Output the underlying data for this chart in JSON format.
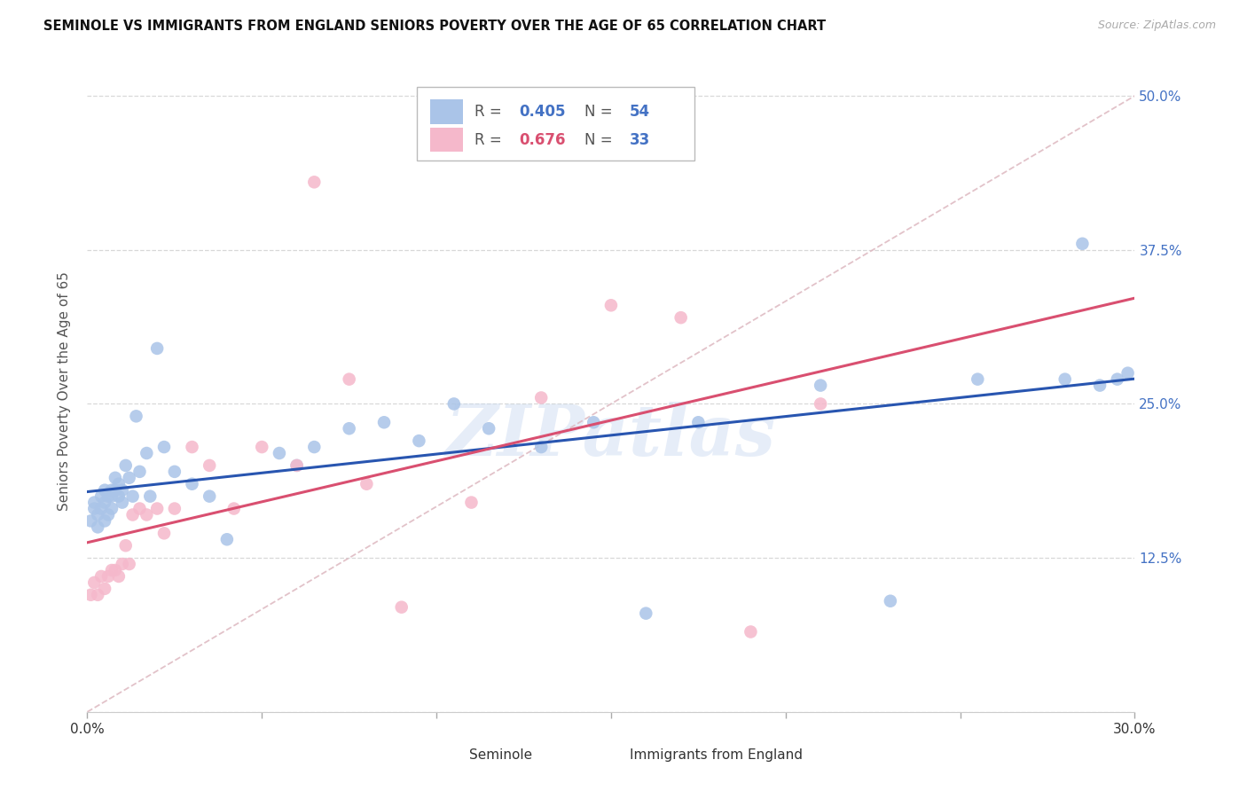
{
  "title": "SEMINOLE VS IMMIGRANTS FROM ENGLAND SENIORS POVERTY OVER THE AGE OF 65 CORRELATION CHART",
  "source": "Source: ZipAtlas.com",
  "ylabel": "Seniors Poverty Over the Age of 65",
  "xlim": [
    0.0,
    0.3
  ],
  "ylim": [
    0.0,
    0.52
  ],
  "xticks": [
    0.0,
    0.05,
    0.1,
    0.15,
    0.2,
    0.25,
    0.3
  ],
  "xtick_labels": [
    "0.0%",
    "",
    "",
    "",
    "",
    "",
    "30.0%"
  ],
  "ytick_positions": [
    0.0,
    0.125,
    0.25,
    0.375,
    0.5
  ],
  "ytick_labels": [
    "",
    "12.5%",
    "25.0%",
    "37.5%",
    "50.0%"
  ],
  "background_color": "#ffffff",
  "grid_color": "#d8d8d8",
  "seminole_color": "#aac4e8",
  "england_color": "#f5b8cb",
  "seminole_line_color": "#2855b0",
  "england_line_color": "#d94f70",
  "diagonal_color": "#ddb8c0",
  "seminole_R": 0.405,
  "seminole_N": 54,
  "england_R": 0.676,
  "england_N": 33,
  "watermark_text": "ZIPatlas",
  "seminole_x": [
    0.001,
    0.002,
    0.002,
    0.003,
    0.003,
    0.004,
    0.004,
    0.005,
    0.005,
    0.005,
    0.006,
    0.006,
    0.007,
    0.007,
    0.007,
    0.008,
    0.008,
    0.009,
    0.009,
    0.01,
    0.01,
    0.011,
    0.012,
    0.013,
    0.014,
    0.015,
    0.017,
    0.018,
    0.02,
    0.022,
    0.025,
    0.03,
    0.035,
    0.04,
    0.055,
    0.06,
    0.065,
    0.075,
    0.085,
    0.095,
    0.105,
    0.115,
    0.13,
    0.145,
    0.16,
    0.175,
    0.21,
    0.23,
    0.255,
    0.28,
    0.285,
    0.29,
    0.295,
    0.298
  ],
  "seminole_y": [
    0.155,
    0.165,
    0.17,
    0.15,
    0.16,
    0.165,
    0.175,
    0.155,
    0.17,
    0.18,
    0.16,
    0.175,
    0.165,
    0.175,
    0.18,
    0.18,
    0.19,
    0.175,
    0.185,
    0.17,
    0.18,
    0.2,
    0.19,
    0.175,
    0.24,
    0.195,
    0.21,
    0.175,
    0.295,
    0.215,
    0.195,
    0.185,
    0.175,
    0.14,
    0.21,
    0.2,
    0.215,
    0.23,
    0.235,
    0.22,
    0.25,
    0.23,
    0.215,
    0.235,
    0.08,
    0.235,
    0.265,
    0.09,
    0.27,
    0.27,
    0.38,
    0.265,
    0.27,
    0.275
  ],
  "england_x": [
    0.001,
    0.002,
    0.003,
    0.004,
    0.005,
    0.006,
    0.007,
    0.008,
    0.009,
    0.01,
    0.011,
    0.012,
    0.013,
    0.015,
    0.017,
    0.02,
    0.022,
    0.025,
    0.03,
    0.035,
    0.042,
    0.05,
    0.06,
    0.065,
    0.075,
    0.08,
    0.09,
    0.11,
    0.13,
    0.15,
    0.17,
    0.19,
    0.21
  ],
  "england_y": [
    0.095,
    0.105,
    0.095,
    0.11,
    0.1,
    0.11,
    0.115,
    0.115,
    0.11,
    0.12,
    0.135,
    0.12,
    0.16,
    0.165,
    0.16,
    0.165,
    0.145,
    0.165,
    0.215,
    0.2,
    0.165,
    0.215,
    0.2,
    0.43,
    0.27,
    0.185,
    0.085,
    0.17,
    0.255,
    0.33,
    0.32,
    0.065,
    0.25
  ]
}
